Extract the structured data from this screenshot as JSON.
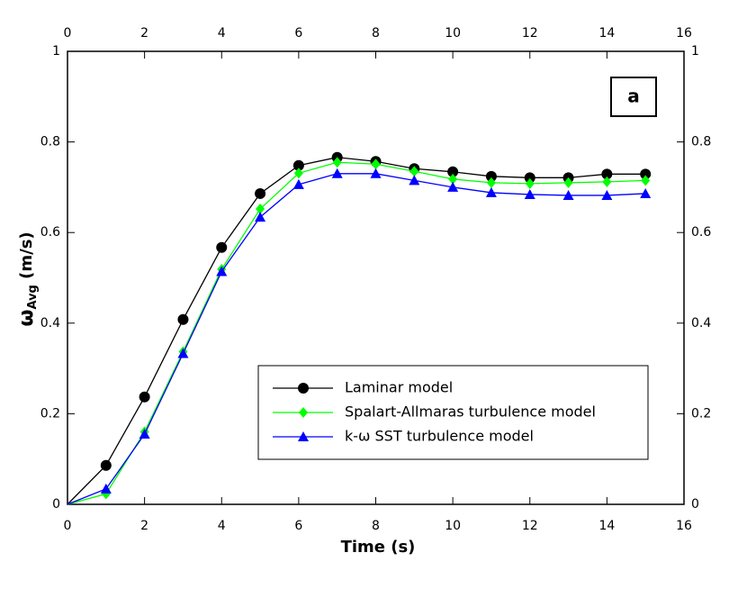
{
  "chart_data": {
    "type": "line",
    "x": [
      0,
      1,
      2,
      3,
      4,
      5,
      6,
      7,
      8,
      9,
      10,
      11,
      12,
      13,
      14,
      15
    ],
    "series": [
      {
        "name": "Laminar model",
        "color": "#000000",
        "marker": "circle",
        "values": [
          0,
          0.086,
          0.237,
          0.408,
          0.567,
          0.686,
          0.748,
          0.766,
          0.757,
          0.741,
          0.734,
          0.724,
          0.721,
          0.721,
          0.729,
          0.729
        ]
      },
      {
        "name": "Spalart-Allmaras turbulence model",
        "color": "#00ff00",
        "marker": "diamond",
        "values": [
          0,
          0.023,
          0.16,
          0.337,
          0.519,
          0.652,
          0.731,
          0.755,
          0.751,
          0.735,
          0.718,
          0.71,
          0.708,
          0.71,
          0.712,
          0.715
        ]
      },
      {
        "name": " k-ω SST turbulence model",
        "color": "#0000ff",
        "marker": "triangle",
        "values": [
          0,
          0.034,
          0.155,
          0.333,
          0.514,
          0.634,
          0.706,
          0.73,
          0.73,
          0.715,
          0.7,
          0.688,
          0.684,
          0.682,
          0.682,
          0.686
        ]
      }
    ],
    "xlabel": "Time (s)",
    "ylabel": "ω",
    "ylabel_sub": "Avg",
    "ylabel_unit": " (m/s)",
    "annotation": "a",
    "xlim": [
      0,
      16
    ],
    "xticks": [
      0,
      2,
      4,
      6,
      8,
      10,
      12,
      14,
      16
    ],
    "ylim": [
      0,
      1
    ],
    "yticks": [
      0,
      0.2,
      0.4,
      0.6,
      0.8,
      1
    ]
  }
}
